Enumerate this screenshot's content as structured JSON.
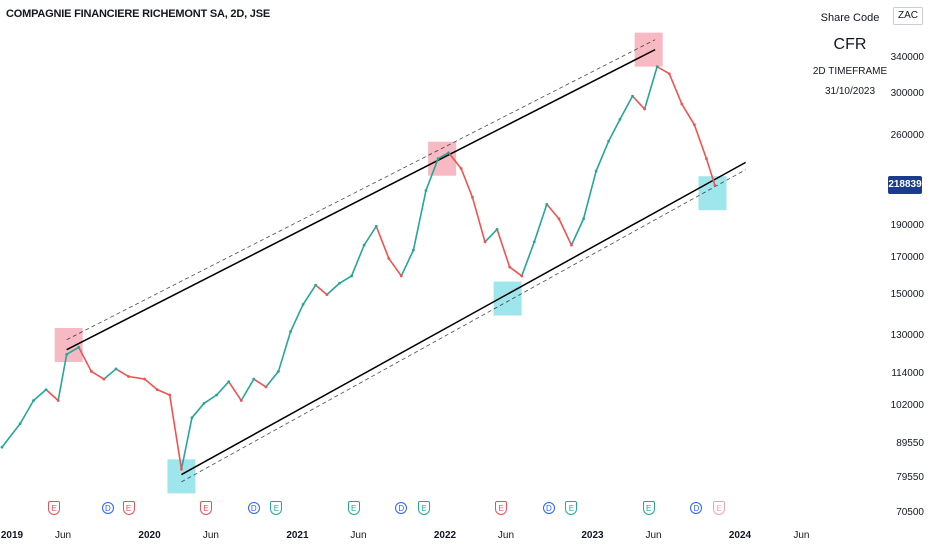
{
  "header": {
    "title": "COMPAGNIE FINANCIERE RICHEMONT SA, 2D, JSE"
  },
  "info": {
    "share_code_label": "Share Code",
    "ticker": "CFR",
    "timeframe": "2D TIMEFRAME",
    "date": "31/10/2023",
    "currency": "ZAC"
  },
  "last_price": "218839",
  "colors": {
    "up": "#26a69a",
    "down": "#ef5350",
    "channel": "#000000",
    "pink": "#f28b99",
    "cyan": "#5fd3e0",
    "price_tag": "#1b3b8c"
  },
  "chart_data": {
    "type": "line",
    "y_scale": "log",
    "y_ticks": [
      70500,
      79550,
      89550,
      102000,
      114000,
      130000,
      150000,
      170000,
      190000,
      260000,
      300000,
      340000
    ],
    "y_tick_labels": [
      "70500",
      "79550",
      "89550",
      "102000",
      "114000",
      "130000",
      "150000",
      "170000",
      "190000",
      "260000",
      "300000",
      "340000"
    ],
    "x_tick_labels": [
      "2019",
      "Jun",
      "2020",
      "Jun",
      "2021",
      "Jun",
      "2022",
      "Jun",
      "2023",
      "Jun",
      "2024",
      "Jun"
    ],
    "x_tick_years": [
      true,
      false,
      true,
      false,
      true,
      false,
      true,
      false,
      true,
      false,
      true,
      false
    ],
    "x_tick_dates": [
      "2019-01-01",
      "2019-06-01",
      "2020-01-01",
      "2020-06-01",
      "2021-01-01",
      "2021-06-01",
      "2022-01-01",
      "2022-06-01",
      "2023-01-01",
      "2023-06-01",
      "2024-01-01",
      "2024-06-01"
    ],
    "series": [
      {
        "dates": [
          "2019-01-01",
          "2019-02-15",
          "2019-03-20",
          "2019-04-20",
          "2019-05-20",
          "2019-06-10",
          "2019-07-10",
          "2019-08-10",
          "2019-09-10",
          "2019-10-10",
          "2019-11-10",
          "2019-12-20",
          "2020-01-20",
          "2020-02-20",
          "2020-03-20",
          "2020-04-15",
          "2020-05-15",
          "2020-06-15",
          "2020-07-15",
          "2020-08-15",
          "2020-09-15",
          "2020-10-15",
          "2020-11-15",
          "2020-12-15",
          "2021-01-15",
          "2021-02-15",
          "2021-03-15",
          "2021-04-15",
          "2021-05-15",
          "2021-06-15",
          "2021-07-15",
          "2021-08-15",
          "2021-09-15",
          "2021-10-15",
          "2021-11-15",
          "2021-12-15",
          "2022-01-10",
          "2022-02-10",
          "2022-03-10",
          "2022-04-10",
          "2022-05-10",
          "2022-06-10",
          "2022-07-10",
          "2022-08-10",
          "2022-09-10",
          "2022-10-10",
          "2022-11-10",
          "2022-12-10",
          "2023-01-10",
          "2023-02-10",
          "2023-03-10",
          "2023-04-10",
          "2023-05-10",
          "2023-06-10",
          "2023-07-10",
          "2023-08-10",
          "2023-09-10",
          "2023-10-10",
          "2023-10-31"
        ],
        "values": [
          88500,
          96000,
          104000,
          108000,
          104000,
          122000,
          125000,
          115000,
          112000,
          116000,
          113000,
          112000,
          108000,
          106000,
          82000,
          98000,
          103000,
          106000,
          111000,
          104000,
          112000,
          109000,
          115000,
          132000,
          145000,
          155000,
          150000,
          156000,
          160000,
          178000,
          190000,
          170000,
          160000,
          175000,
          215000,
          240000,
          245000,
          232000,
          210000,
          180000,
          188000,
          165000,
          160000,
          180000,
          205000,
          195000,
          178000,
          195000,
          230000,
          255000,
          275000,
          298000,
          285000,
          330000,
          322000,
          290000,
          270000,
          240000,
          218839
        ]
      }
    ]
  },
  "channel": {
    "upper": {
      "start": [
        "2019-06-10",
        124000
      ],
      "end": [
        "2023-06-05",
        350000
      ]
    },
    "lower": {
      "start": [
        "2020-03-20",
        80500
      ],
      "end": [
        "2024-01-15",
        237000
      ]
    },
    "upper_dashed_offset": 1.035,
    "lower_dashed_offset": 0.975
  },
  "highlights": [
    {
      "kind": "pink",
      "date": "2019-06-15",
      "value": 126000
    },
    {
      "kind": "cyan",
      "date": "2020-03-20",
      "value": 80000
    },
    {
      "kind": "pink",
      "date": "2021-12-25",
      "value": 240000
    },
    {
      "kind": "cyan",
      "date": "2022-06-05",
      "value": 148000
    },
    {
      "kind": "pink",
      "date": "2023-05-20",
      "value": 350000
    },
    {
      "kind": "cyan",
      "date": "2023-10-25",
      "value": 213000
    }
  ],
  "events": [
    {
      "label": "E",
      "date": "2019-05-10",
      "style": "E"
    },
    {
      "label": "D",
      "date": "2019-09-20",
      "style": "D"
    },
    {
      "label": "E",
      "date": "2019-11-10",
      "style": "E"
    },
    {
      "label": "E",
      "date": "2020-05-20",
      "style": "E"
    },
    {
      "label": "D",
      "date": "2020-09-15",
      "style": "D"
    },
    {
      "label": "E",
      "date": "2020-11-10",
      "style": "Eg"
    },
    {
      "label": "E",
      "date": "2021-05-20",
      "style": "Eg"
    },
    {
      "label": "D",
      "date": "2021-09-15",
      "style": "D"
    },
    {
      "label": "E",
      "date": "2021-11-10",
      "style": "Eg"
    },
    {
      "label": "E",
      "date": "2022-05-20",
      "style": "E"
    },
    {
      "label": "D",
      "date": "2022-09-15",
      "style": "D"
    },
    {
      "label": "E",
      "date": "2022-11-10",
      "style": "Eg"
    },
    {
      "label": "E",
      "date": "2023-05-20",
      "style": "Eg"
    },
    {
      "label": "D",
      "date": "2023-09-15",
      "style": "D"
    },
    {
      "label": "E",
      "date": "2023-11-10",
      "style": "Ep"
    }
  ]
}
